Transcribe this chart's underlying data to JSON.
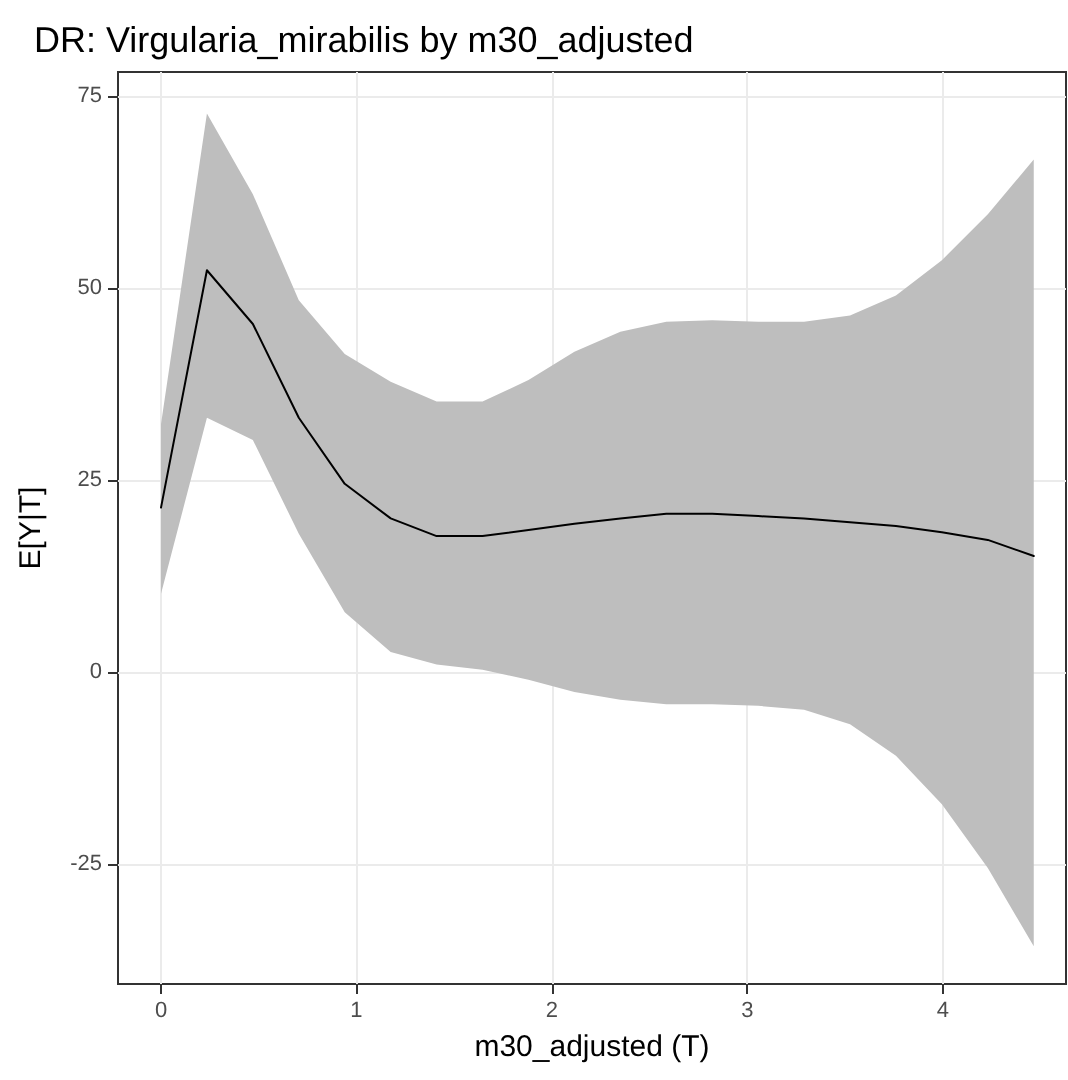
{
  "chart_data": {
    "type": "line",
    "title": "DR: Virgularia_mirabilis by m30_adjusted",
    "xlabel": "m30_adjusted (T)",
    "ylabel": "E[Y|T]",
    "x": [
      0,
      0.235,
      0.47,
      0.705,
      0.94,
      1.175,
      1.41,
      1.645,
      1.88,
      2.115,
      2.35,
      2.585,
      2.82,
      3.055,
      3.29,
      3.525,
      3.76,
      3.995,
      4.23,
      4.465
    ],
    "series": [
      {
        "color": "#000000",
        "values": [
          21.4,
          52.3,
          45.3,
          33.1,
          24.5,
          20,
          17.7,
          17.7,
          18.5,
          19.3,
          20,
          20.6,
          20.6,
          20.3,
          20,
          19.5,
          19,
          18.2,
          17.2,
          15.1
        ],
        "upper": [
          32.3,
          72.7,
          62.2,
          48.4,
          41.4,
          37.8,
          35.2,
          35.2,
          38,
          41.7,
          44.3,
          45.6,
          45.8,
          45.6,
          45.6,
          46.4,
          49,
          53.6,
          59.6,
          66.7
        ],
        "lower": [
          10.2,
          33.1,
          30.2,
          18,
          7.8,
          2.6,
          1,
          0.3,
          -1,
          -2.6,
          -3.6,
          -4.2,
          -4.2,
          -4.4,
          -4.9,
          -6.8,
          -10.9,
          -17.2,
          -25.5,
          -35.7
        ]
      }
    ],
    "xlim": [
      -0.22,
      4.63
    ],
    "xticks": [
      0,
      1,
      2,
      3,
      4
    ],
    "ylim": [
      -40.6,
      78.1
    ],
    "yticks": [
      -25,
      0,
      25,
      50,
      75
    ],
    "grid": true,
    "marker": "none",
    "line_style": "solid"
  }
}
